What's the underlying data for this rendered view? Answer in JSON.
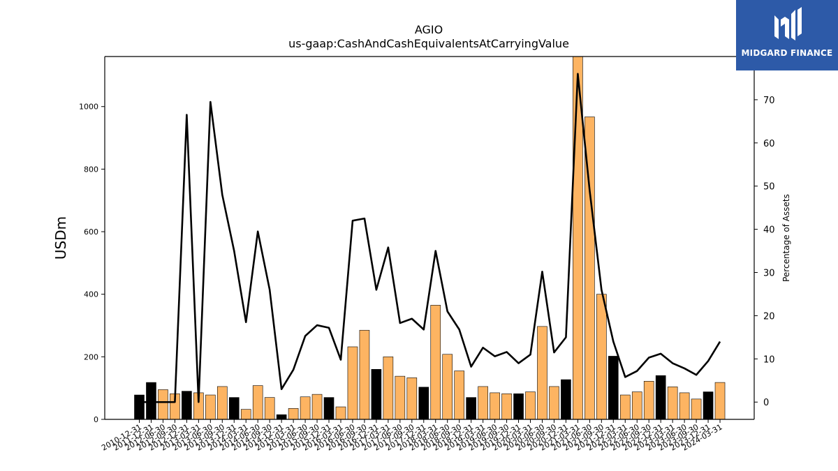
{
  "chart_data": {
    "type": "bar",
    "title": "AGIO",
    "subtitle": "us-gaap:CashAndCashEquivalentsAtCarryingValue",
    "ylabel": "USDm",
    "y2label": "Percentage of Assets",
    "ylim": [
      0,
      1160
    ],
    "y2lim": [
      -4,
      80
    ],
    "yticks": [
      0,
      200,
      400,
      600,
      800,
      1000
    ],
    "y2ticks": [
      0,
      10,
      20,
      30,
      40,
      50,
      60,
      70
    ],
    "categories": [
      "2010-12-31",
      "2011-12-31",
      "2012-06-30",
      "2012-09-30",
      "2012-12-31",
      "2013-03-31",
      "2013-06-30",
      "2013-09-30",
      "2013-12-31",
      "2014-03-31",
      "2014-06-30",
      "2014-09-30",
      "2014-12-31",
      "2015-03-31",
      "2015-06-30",
      "2015-09-30",
      "2015-12-31",
      "2016-03-31",
      "2016-06-30",
      "2016-09-30",
      "2016-12-31",
      "2017-03-31",
      "2017-06-30",
      "2017-09-30",
      "2017-12-31",
      "2018-03-31",
      "2018-06-30",
      "2018-09-30",
      "2018-12-31",
      "2019-03-31",
      "2019-06-30",
      "2019-09-30",
      "2019-12-31",
      "2020-03-31",
      "2020-06-30",
      "2020-09-30",
      "2020-12-31",
      "2021-03-31",
      "2021-06-30",
      "2021-09-30",
      "2021-12-31",
      "2022-03-31",
      "2022-06-30",
      "2022-09-30",
      "2022-12-31",
      "2023-03-31",
      "2023-06-30",
      "2023-09-30",
      "2023-12-31",
      "2024-03-31"
    ],
    "tick_labels": [
      "2010-12-31",
      "2011-12-31",
      "2012-06-30",
      "2012-09-30",
      "2012-12-31",
      "2013-03-31",
      "2013-06-30",
      "2013-09-30",
      "2013-12-31",
      "2014-03-31",
      "2014-06-30",
      "2014-09-30",
      "2014-12-31",
      "2015-03-31",
      "2015-06-30",
      "2015-09-30",
      "2015-12-31",
      "2016-03-31",
      "2016-06-30",
      "2016-09-30",
      "2016-12-31",
      "2017-03-31",
      "2017-06-30",
      "2017-09-30",
      "2017-12-31",
      "2018-03-31",
      "2018-06-30",
      "2018-09-30",
      "2018-12-31",
      "2019-03-31",
      "2019-06-30",
      "2019-09-30",
      "2019-12-31",
      "2020-03-31",
      "2020-06-30",
      "2020-09-30",
      "2020-12-31",
      "2021-03-31",
      "2021-06-30",
      "2021-09-30",
      "2021-12-31",
      "2022-03-31",
      "2022-06-30",
      "2022-09-30",
      "2022-12-31",
      "2023-03-31",
      "2023-06-30",
      "2023-09-30",
      "2023-12-31",
      "2024-03-31"
    ],
    "series": [
      {
        "type": "bar",
        "axis": "left",
        "values": [
          78,
          118,
          95,
          82,
          90,
          85,
          78,
          105,
          70,
          32,
          108,
          70,
          15,
          35,
          72,
          80,
          70,
          40,
          232,
          285,
          160,
          200,
          138,
          133,
          103,
          365,
          208,
          155,
          70,
          105,
          85,
          82,
          82,
          88,
          297,
          105,
          127,
          1160,
          967,
          400,
          202,
          78,
          88,
          122,
          140,
          104,
          85,
          65,
          88,
          118
        ]
      },
      {
        "type": "line",
        "axis": "right",
        "values": [
          0,
          0,
          0,
          0,
          66.5,
          0,
          69.5,
          48,
          35,
          18.5,
          39.5,
          26,
          3,
          7.5,
          15.3,
          17.8,
          17.2,
          9.8,
          42,
          42.5,
          26,
          35.8,
          18.3,
          19.3,
          16.8,
          35,
          21,
          16.8,
          8.2,
          12.6,
          10.6,
          11.6,
          9,
          11,
          30.2,
          11.5,
          15,
          76,
          49,
          26,
          14,
          5.8,
          7.2,
          10.3,
          11.2,
          9,
          7.8,
          6.3,
          9.5,
          14
        ]
      }
    ],
    "bar_colors": {
      "annual": "#000000",
      "quarterly": "#fdb462"
    },
    "annual_categories": [
      "2010-12-31",
      "2011-12-31",
      "2012-12-31",
      "2013-12-31",
      "2014-12-31",
      "2015-12-31",
      "2016-12-31",
      "2017-12-31",
      "2018-12-31",
      "2019-12-31",
      "2020-12-31",
      "2021-12-31",
      "2022-12-31",
      "2023-12-31"
    ],
    "line_color": "#000000",
    "grid": false,
    "legend": "none"
  },
  "logo": {
    "text": "MIDGARD FINANCE",
    "background": "#2d5aa8",
    "icon": "midgard-logo-icon"
  }
}
